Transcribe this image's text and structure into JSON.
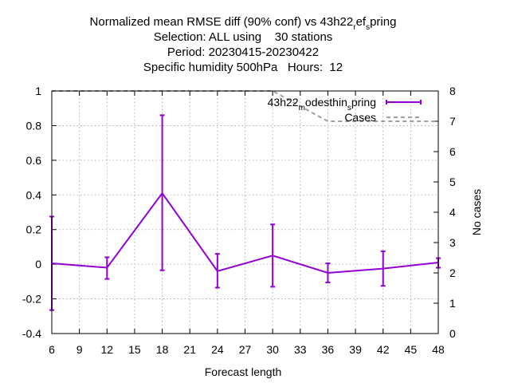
{
  "chart_data": {
    "type": "line",
    "title_lines": [
      "Normalized mean RMSE diff (90% conf) vs 43h22_ref_spring",
      "Selection: ALL using    30 stations",
      "Period: 20230415-20230422",
      "Specific humidity 500hPa   Hours:  12"
    ],
    "xlabel": "Forecast length",
    "y2label": "No cases",
    "x_ticks": [
      6,
      9,
      12,
      15,
      18,
      21,
      24,
      27,
      30,
      33,
      36,
      39,
      42,
      45,
      48
    ],
    "y_ticks": [
      -0.4,
      -0.2,
      0,
      0.2,
      0.4,
      0.6,
      0.8,
      1
    ],
    "y2_ticks": [
      0,
      1,
      2,
      3,
      4,
      5,
      6,
      7,
      8
    ],
    "xlim": [
      6,
      48
    ],
    "ylim": [
      -0.4,
      1.0
    ],
    "y2lim": [
      0,
      8
    ],
    "grid": true,
    "legend_position": "top-right",
    "series": [
      {
        "name": "43h22_modesthin_spring",
        "color": "#9400d3",
        "axis": "y1",
        "style": "line-errorbars",
        "x": [
          6,
          12,
          18,
          24,
          30,
          36,
          42,
          48
        ],
        "y": [
          0.005,
          -0.02,
          0.41,
          -0.04,
          0.05,
          -0.05,
          -0.025,
          0.01
        ],
        "err_low": [
          -0.265,
          -0.085,
          -0.035,
          -0.135,
          -0.13,
          -0.105,
          -0.125,
          -0.02
        ],
        "err_high": [
          0.275,
          0.04,
          0.86,
          0.06,
          0.23,
          0.005,
          0.075,
          0.035
        ]
      },
      {
        "name": "Cases",
        "color": "#a0a0a0",
        "axis": "y2",
        "style": "dashed",
        "x": [
          6,
          30,
          36,
          48
        ],
        "y": [
          8,
          8,
          7,
          7
        ]
      }
    ]
  }
}
